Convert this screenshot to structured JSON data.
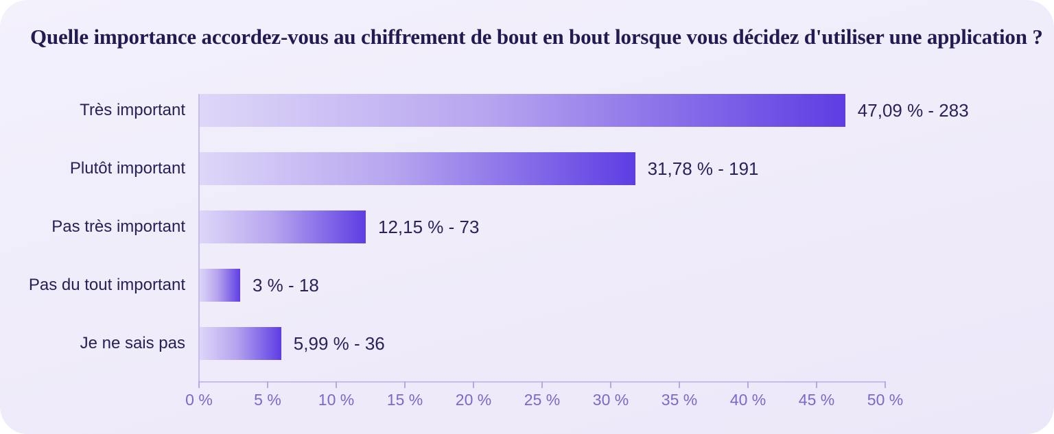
{
  "title": "Quelle importance accordez-vous au chiffrement de bout en bout lorsque vous décidez d'utiliser une application ?",
  "colors": {
    "card_background": "#EFEBFA",
    "title_text": "#221B52",
    "label_text": "#262058",
    "bar_gradient_start": "#DED7F8",
    "bar_gradient_end": "#5E3DE3",
    "axis_line": "#C7BCEE",
    "tick_label_text": "#7B68CC"
  },
  "chart_data": {
    "type": "bar",
    "orientation": "horizontal",
    "title": "Quelle importance accordez-vous au chiffrement de bout en bout lorsque vous décidez d'utiliser une application ?",
    "categories": [
      "Très important",
      "Plutôt important",
      "Pas très important",
      "Pas du tout important",
      "Je ne sais pas"
    ],
    "values_pct": [
      47.09,
      31.78,
      12.15,
      3,
      5.99
    ],
    "counts": [
      283,
      191,
      73,
      18,
      36
    ],
    "value_labels": [
      "47,09 % - 283",
      "31,78 % - 191",
      "12,15 % - 73",
      "3 % - 18",
      "5,99 % - 36"
    ],
    "x_ticks": [
      "0 %",
      "5 %",
      "10 %",
      "15 %",
      "20 %",
      "25 %",
      "30 %",
      "35 %",
      "40 %",
      "45 %",
      "50 %"
    ],
    "xlim": [
      0,
      50
    ],
    "xlabel": "",
    "ylabel": "",
    "grid": false,
    "legend": "none"
  }
}
